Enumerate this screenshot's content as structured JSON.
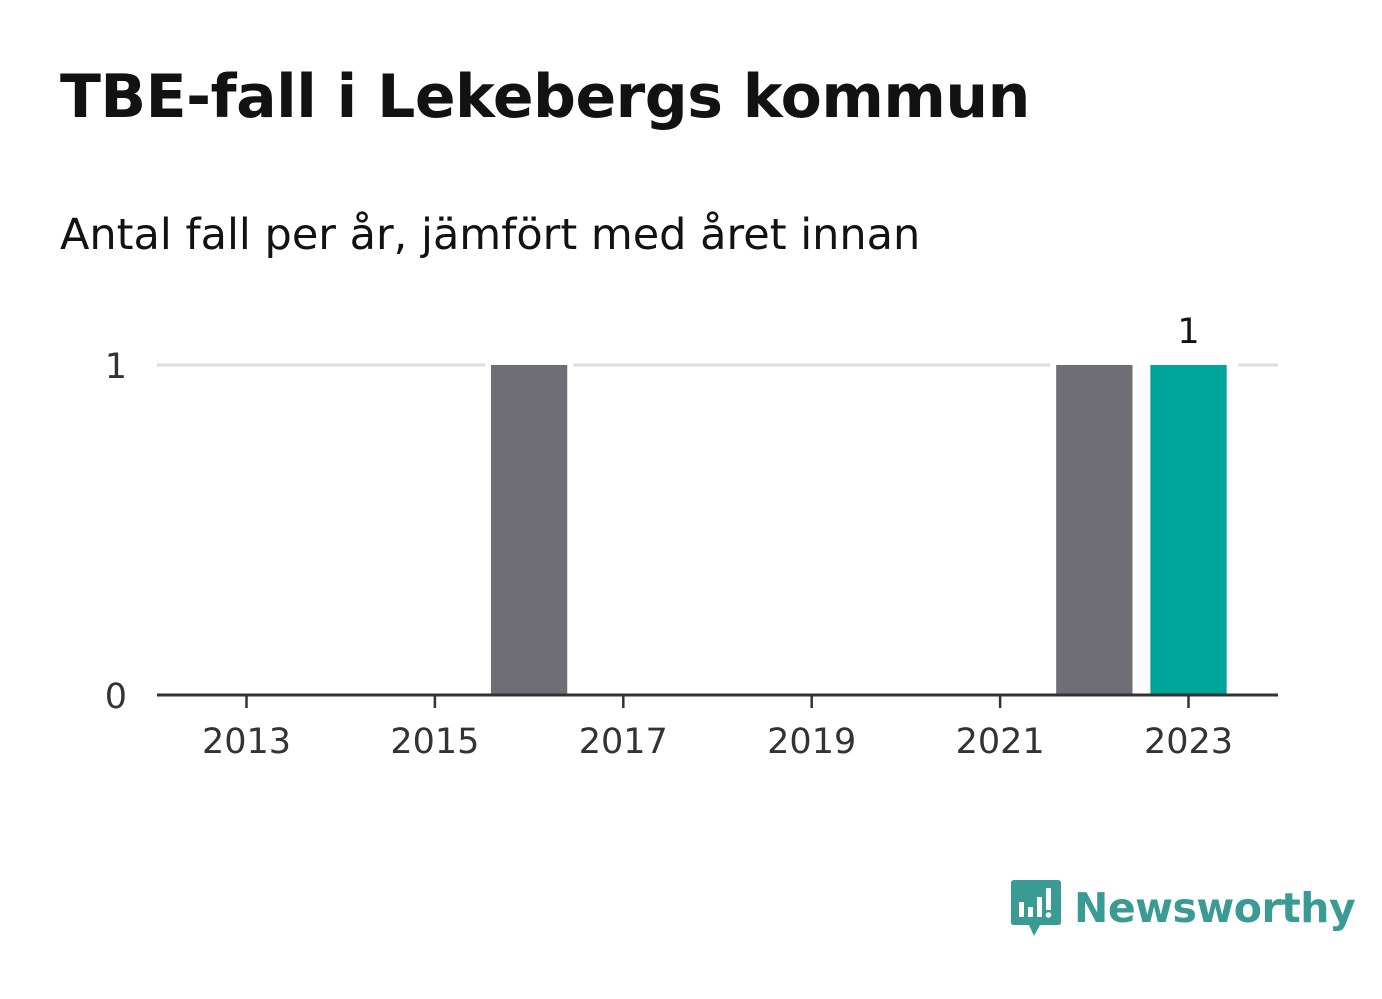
{
  "title": "TBE-fall i Lekebergs kommun",
  "subtitle": "Antal fall per år, jämfört med året innan",
  "brand": {
    "name": "Newsworthy",
    "icon": "newsworthy-logo-icon",
    "color": "#3a9a94"
  },
  "colors": {
    "bar": "#6f6e75",
    "highlight": "#00a59a",
    "grid": "#dddddd",
    "axis": "#333333",
    "text": "#333333"
  },
  "chart_data": {
    "type": "bar",
    "x": [
      2013,
      2014,
      2015,
      2016,
      2017,
      2018,
      2019,
      2020,
      2021,
      2022,
      2023
    ],
    "values": [
      0,
      0,
      0,
      1,
      0,
      0,
      0,
      0,
      0,
      1,
      1
    ],
    "highlight_index": 10,
    "x_ticks": [
      "2013",
      "2015",
      "2017",
      "2019",
      "2021",
      "2023"
    ],
    "y_ticks": [
      "0",
      "1"
    ],
    "ylim": [
      0,
      1
    ],
    "data_labels": [
      {
        "index": 10,
        "text": "1"
      }
    ],
    "grid": true,
    "title": "TBE-fall i Lekebergs kommun",
    "subtitle": "Antal fall per år, jämfört med året innan",
    "xlabel": "",
    "ylabel": ""
  }
}
